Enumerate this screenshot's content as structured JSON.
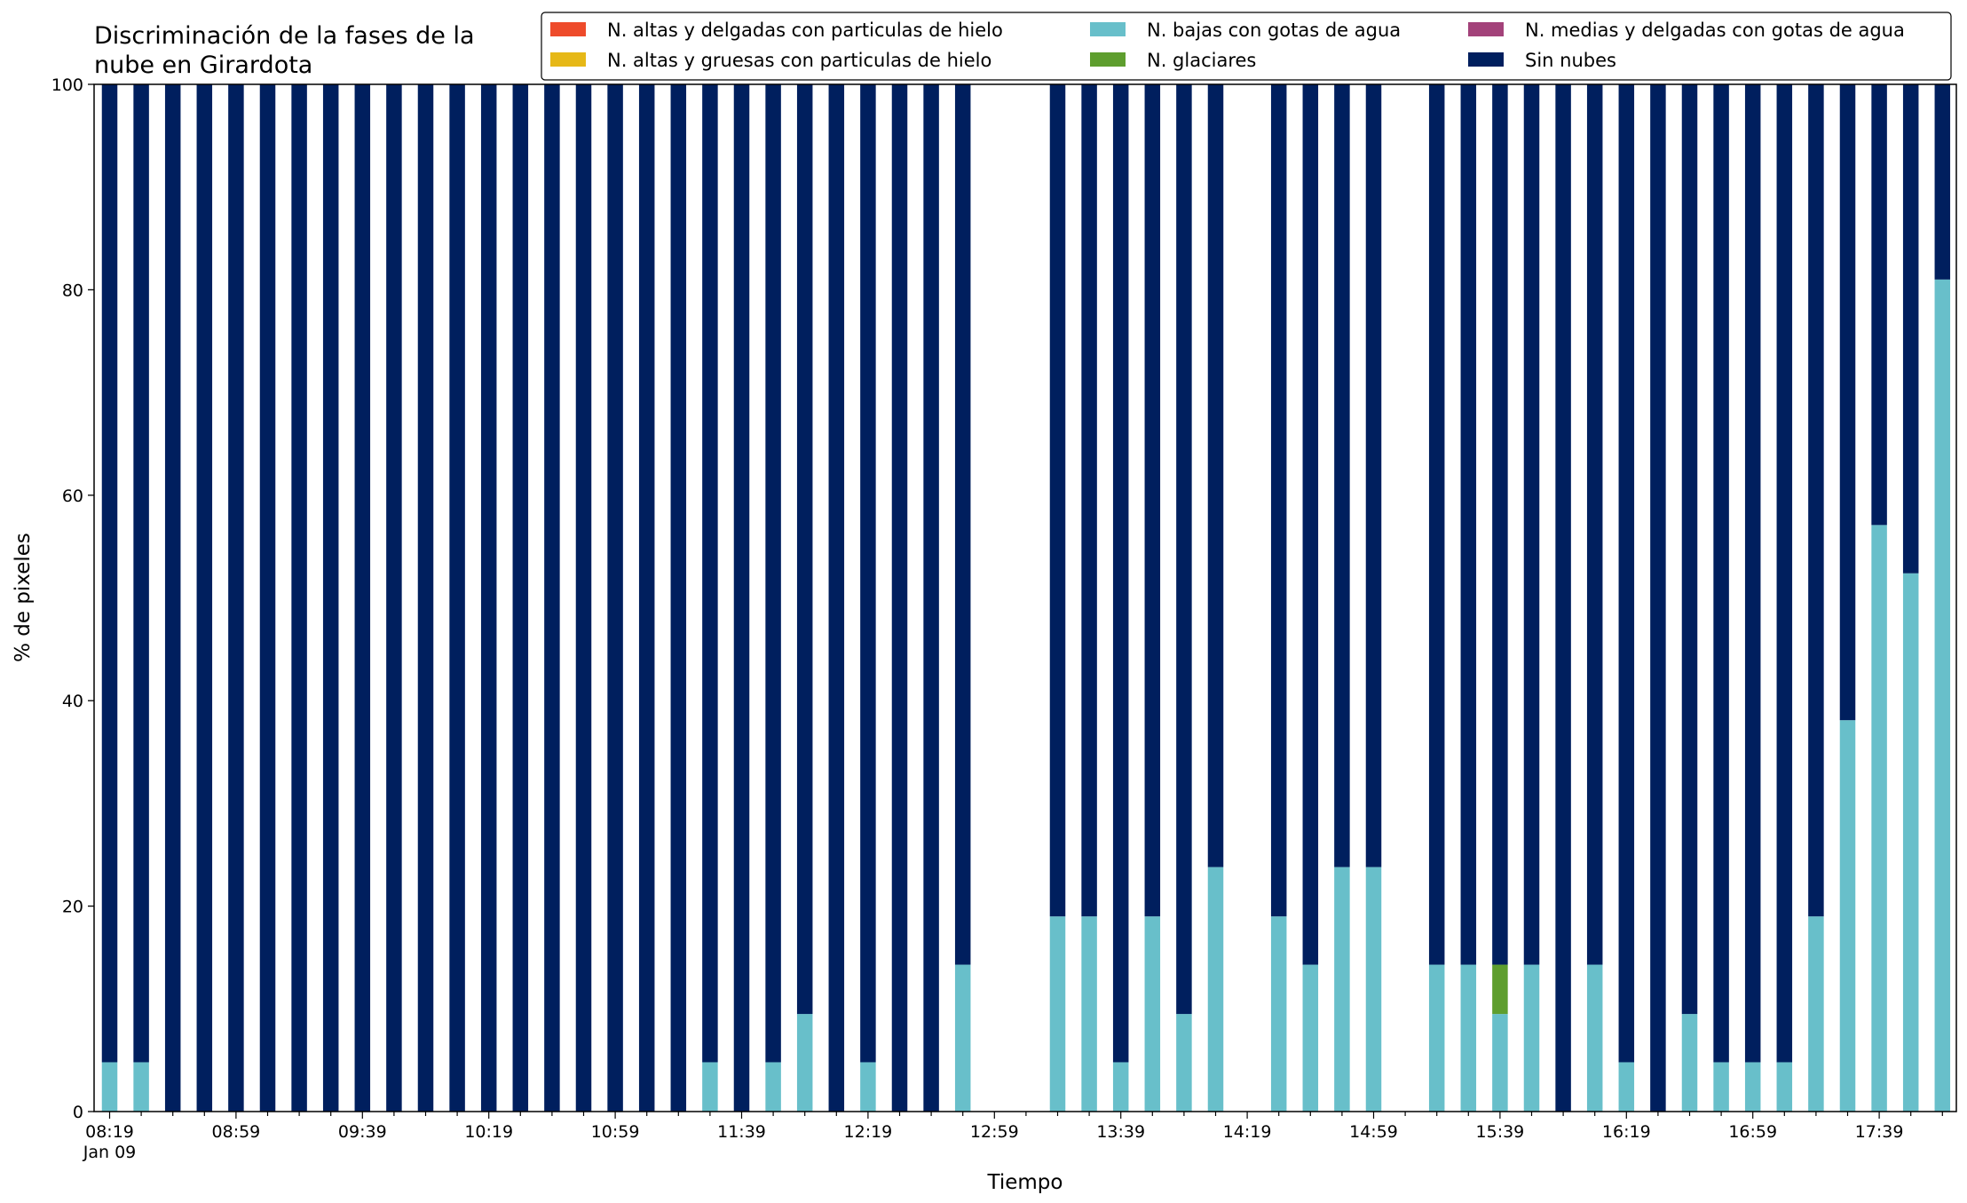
{
  "chart_data": {
    "type": "bar",
    "stacked": true,
    "title_lines": [
      "Discriminación de la fases de la",
      "nube en Girardota"
    ],
    "xlabel": "Tiempo",
    "ylabel": "% de pixeles",
    "ylim": [
      0,
      100
    ],
    "y_ticks": [
      0,
      20,
      40,
      60,
      80,
      100
    ],
    "grid": false,
    "legend_position": "top-right",
    "categories": [
      "08:19",
      "08:29",
      "08:39",
      "08:49",
      "08:59",
      "09:09",
      "09:19",
      "09:29",
      "09:39",
      "09:49",
      "09:59",
      "10:09",
      "10:19",
      "10:29",
      "10:39",
      "10:49",
      "10:59",
      "11:09",
      "11:19",
      "11:29",
      "11:39",
      "11:49",
      "11:59",
      "12:09",
      "12:19",
      "12:29",
      "12:39",
      "12:49",
      "12:59",
      "13:09",
      "13:19",
      "13:29",
      "13:39",
      "13:49",
      "13:59",
      "14:09",
      "14:19",
      "14:29",
      "14:39",
      "14:49",
      "14:59",
      "15:09",
      "15:19",
      "15:29",
      "15:39",
      "15:49",
      "15:59",
      "16:09",
      "16:19",
      "16:29",
      "16:39",
      "16:49",
      "16:59",
      "17:09",
      "17:19",
      "17:29",
      "17:39",
      "17:49",
      "17:59"
    ],
    "x_tick_labels": [
      {
        "index": 0,
        "label": "08:19",
        "sublabel": "Jan 09"
      },
      {
        "index": 4,
        "label": "08:59"
      },
      {
        "index": 8,
        "label": "09:39"
      },
      {
        "index": 12,
        "label": "10:19"
      },
      {
        "index": 16,
        "label": "10:59"
      },
      {
        "index": 20,
        "label": "11:39"
      },
      {
        "index": 24,
        "label": "12:19"
      },
      {
        "index": 28,
        "label": "12:59"
      },
      {
        "index": 32,
        "label": "13:39"
      },
      {
        "index": 36,
        "label": "14:19"
      },
      {
        "index": 40,
        "label": "14:59"
      },
      {
        "index": 44,
        "label": "15:39"
      },
      {
        "index": 48,
        "label": "16:19"
      },
      {
        "index": 52,
        "label": "16:59"
      },
      {
        "index": 56,
        "label": "17:39"
      }
    ],
    "series": [
      {
        "name": "N. altas y delgadas con particulas de hielo",
        "color": "#ee4b2b",
        "values": [
          0,
          0,
          0,
          0,
          0,
          0,
          0,
          0,
          0,
          0,
          0,
          0,
          0,
          0,
          0,
          0,
          0,
          0,
          0,
          0,
          0,
          0,
          0,
          0,
          0,
          0,
          0,
          0,
          0,
          0,
          0,
          0,
          0,
          0,
          0,
          0,
          0,
          0,
          0,
          0,
          0,
          0,
          0,
          0,
          0,
          0,
          0,
          0,
          0,
          0,
          0,
          0,
          0,
          0,
          0,
          0,
          0,
          0,
          0
        ]
      },
      {
        "name": "N. altas y gruesas con particulas de hielo",
        "color": "#e6b817",
        "values": [
          0,
          0,
          0,
          0,
          0,
          0,
          0,
          0,
          0,
          0,
          0,
          0,
          0,
          0,
          0,
          0,
          0,
          0,
          0,
          0,
          0,
          0,
          0,
          0,
          0,
          0,
          0,
          0,
          0,
          0,
          0,
          0,
          0,
          0,
          0,
          0,
          0,
          0,
          0,
          0,
          0,
          0,
          0,
          0,
          0,
          0,
          0,
          0,
          0,
          0,
          0,
          0,
          0,
          0,
          0,
          0,
          0,
          0,
          0
        ]
      },
      {
        "name": "N. bajas con gotas de agua",
        "color": "#68bfca",
        "values": [
          4.8,
          4.8,
          0,
          0,
          0,
          0,
          0,
          0,
          0,
          0,
          0,
          0,
          0,
          0,
          0,
          0,
          0,
          0,
          0,
          4.8,
          0,
          4.8,
          9.5,
          0,
          4.8,
          0,
          0,
          14.3,
          null,
          null,
          19.0,
          19.0,
          4.8,
          19.0,
          9.5,
          23.8,
          null,
          19.0,
          14.3,
          23.8,
          23.8,
          null,
          14.3,
          14.3,
          9.5,
          14.3,
          0,
          14.3,
          4.8,
          0,
          9.5,
          4.8,
          4.8,
          4.8,
          19.0,
          38.1,
          57.1,
          52.4,
          81.0
        ]
      },
      {
        "name": "N. glaciares",
        "color": "#5e9e2e",
        "values": [
          0,
          0,
          0,
          0,
          0,
          0,
          0,
          0,
          0,
          0,
          0,
          0,
          0,
          0,
          0,
          0,
          0,
          0,
          0,
          0,
          0,
          0,
          0,
          0,
          0,
          0,
          0,
          0,
          null,
          null,
          0,
          0,
          0,
          0,
          0,
          0,
          null,
          0,
          0,
          0,
          0,
          null,
          0,
          0,
          4.8,
          0,
          0,
          0,
          0,
          0,
          0,
          0,
          0,
          0,
          0,
          0,
          0,
          0,
          0
        ]
      },
      {
        "name": "N. medias y delgadas con gotas de agua",
        "color": "#a3427a",
        "values": [
          0,
          0,
          0,
          0,
          0,
          0,
          0,
          0,
          0,
          0,
          0,
          0,
          0,
          0,
          0,
          0,
          0,
          0,
          0,
          0,
          0,
          0,
          0,
          0,
          0,
          0,
          0,
          0,
          0,
          0,
          0,
          0,
          0,
          0,
          0,
          0,
          0,
          0,
          0,
          0,
          0,
          0,
          0,
          0,
          0,
          0,
          0,
          0,
          0,
          0,
          0,
          0,
          0,
          0,
          0,
          0,
          0,
          0,
          0
        ]
      },
      {
        "name": "Sin nubes",
        "color": "#001f5e",
        "values": [
          95.2,
          95.2,
          100,
          100,
          100,
          100,
          100,
          100,
          100,
          100,
          100,
          100,
          100,
          100,
          100,
          100,
          100,
          100,
          100,
          95.2,
          100,
          95.2,
          90.5,
          100,
          95.2,
          100,
          100,
          85.7,
          null,
          null,
          81.0,
          81.0,
          95.2,
          81.0,
          90.5,
          76.2,
          null,
          81.0,
          85.7,
          76.2,
          76.2,
          null,
          85.7,
          85.7,
          85.7,
          85.7,
          100,
          85.7,
          95.2,
          100,
          90.5,
          95.2,
          95.2,
          95.2,
          81.0,
          61.9,
          42.9,
          47.6,
          19.0
        ]
      }
    ]
  }
}
